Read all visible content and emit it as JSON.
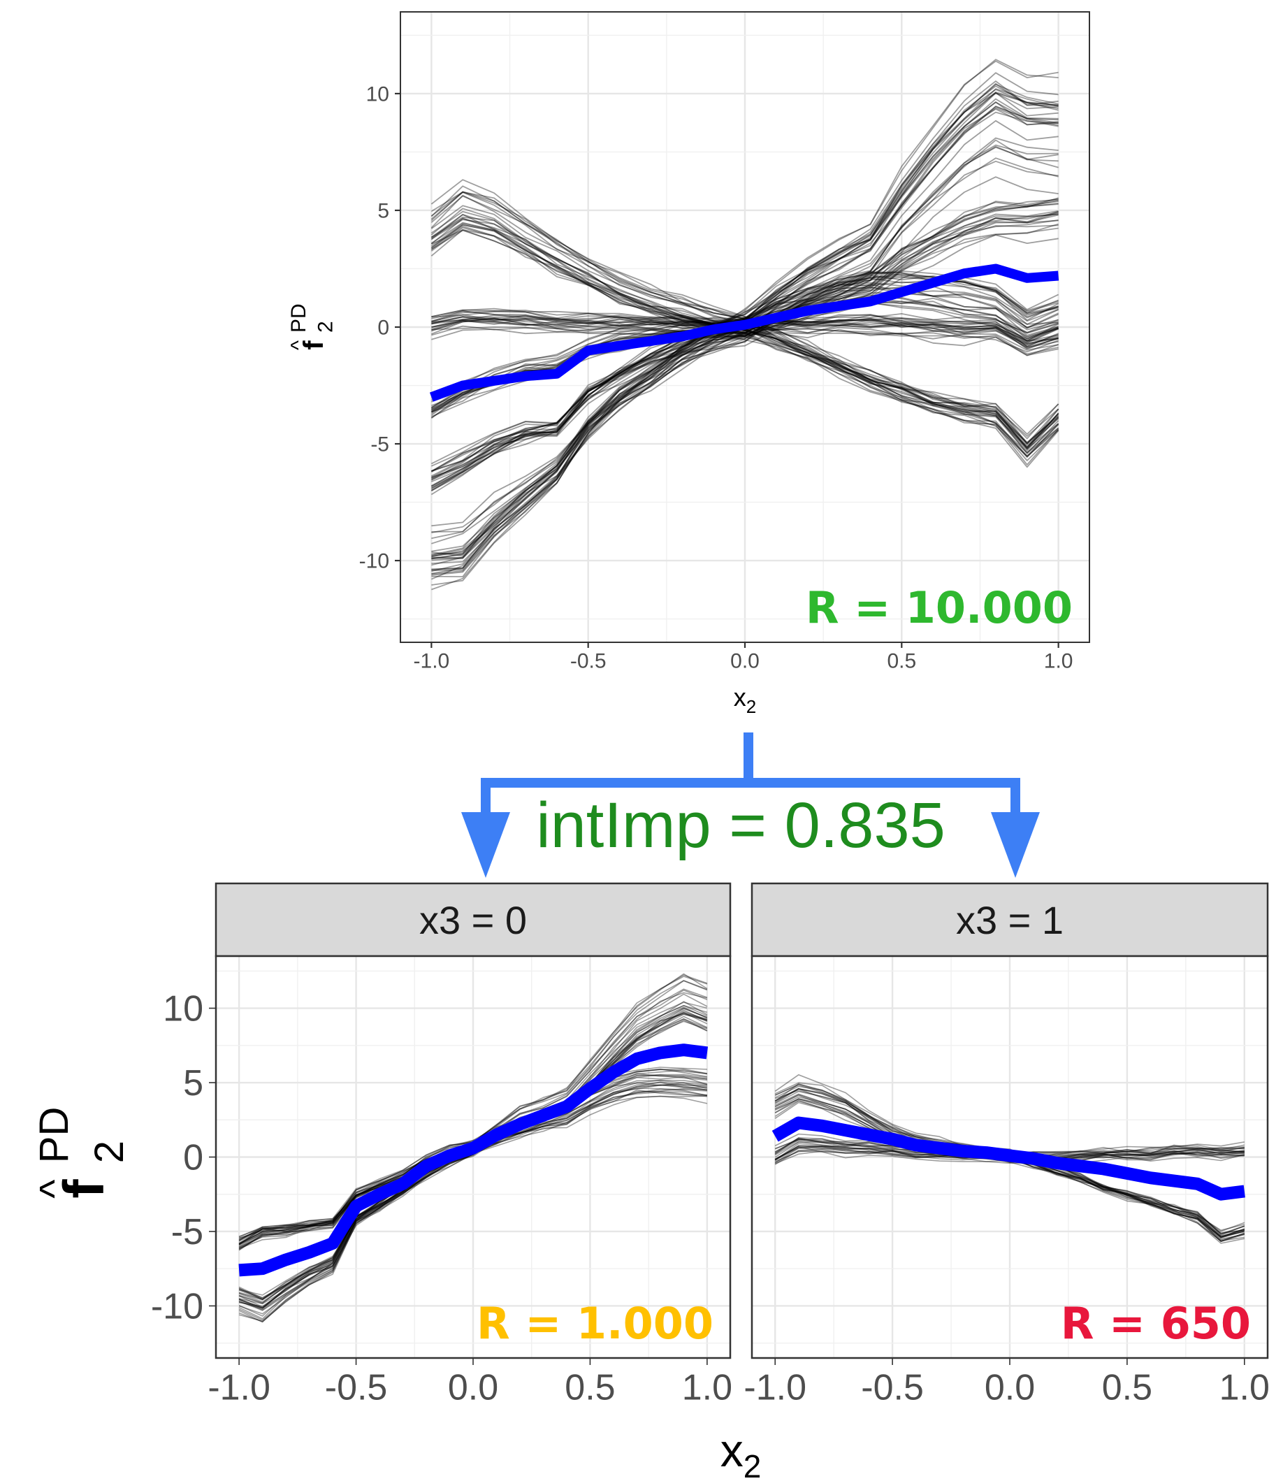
{
  "chart_data": [
    {
      "type": "line",
      "panel": "top",
      "xlabel_base": "x",
      "xlabel_sub": "2",
      "ylabel_base": "f",
      "ylabel_sub": "2",
      "ylabel_sup": "PD",
      "ylabel_hat": "^",
      "xlim": [
        -1.0,
        1.0
      ],
      "ylim": [
        -13.5,
        13.5
      ],
      "xticks": [
        "-1.0",
        "-0.5",
        "0.0",
        "0.5",
        "1.0"
      ],
      "xtick_values": [
        -1.0,
        -0.5,
        0.0,
        0.5,
        1.0
      ],
      "yticks": [
        "-10",
        "-5",
        "0",
        "5",
        "10"
      ],
      "ytick_values": [
        -10,
        -5,
        0,
        5,
        10
      ],
      "grid": true,
      "annotation": "R = 10.000",
      "annotation_color": "#2eb82e",
      "mean_color": "#0000ff",
      "ice_color": "#000000",
      "x": [
        -1.0,
        -0.9,
        -0.8,
        -0.7,
        -0.6,
        -0.5,
        -0.4,
        -0.3,
        -0.2,
        -0.1,
        0.0,
        0.1,
        0.2,
        0.3,
        0.4,
        0.5,
        0.6,
        0.7,
        0.8,
        0.9,
        1.0
      ],
      "series": [
        {
          "values": [
            -3.0,
            -2.5,
            -2.3,
            -2.1,
            -2.0,
            -1.0,
            -0.8,
            -0.6,
            -0.4,
            -0.1,
            0.1,
            0.4,
            0.7,
            0.9,
            1.1,
            1.5,
            1.9,
            2.3,
            2.5,
            2.1,
            2.2
          ]
        }
      ],
      "ice_groups": [
        {
          "values": [
            4.0,
            5.0,
            4.6,
            3.8,
            3.0,
            2.3,
            1.6,
            1.1,
            0.7,
            0.3,
            0.0,
            -0.5,
            -1.1,
            -1.7,
            -2.3,
            -2.8,
            -3.3,
            -3.6,
            -3.8,
            -5.3,
            -4.0
          ],
          "spread": 1.6,
          "count": 26
        },
        {
          "values": [
            0.0,
            0.3,
            0.3,
            0.2,
            0.1,
            0.1,
            0.1,
            0.1,
            0.1,
            0.0,
            0.0,
            0.0,
            0.0,
            0.1,
            0.1,
            0.0,
            -0.1,
            -0.2,
            -0.1,
            -0.8,
            -0.4
          ],
          "spread": 1.1,
          "count": 22
        },
        {
          "values": [
            -6.5,
            -5.8,
            -5.0,
            -4.5,
            -4.3,
            -2.8,
            -2.0,
            -1.3,
            -0.7,
            -0.3,
            0.0,
            0.6,
            1.1,
            1.5,
            1.7,
            1.6,
            1.5,
            1.3,
            1.0,
            0.1,
            0.5
          ],
          "spread": 1.4,
          "count": 24
        },
        {
          "values": [
            -10.0,
            -9.8,
            -8.4,
            -7.3,
            -6.2,
            -4.3,
            -3.1,
            -2.2,
            -1.2,
            -0.5,
            0.0,
            1.0,
            1.9,
            2.6,
            3.3,
            5.2,
            6.8,
            8.2,
            9.2,
            8.6,
            8.5
          ],
          "spread": 2.0,
          "count": 30
        },
        {
          "values": [
            -3.5,
            -2.8,
            -2.2,
            -1.8,
            -1.6,
            -0.9,
            -0.6,
            -0.4,
            -0.2,
            -0.1,
            0.0,
            0.5,
            0.9,
            1.3,
            1.8,
            2.8,
            3.5,
            4.2,
            4.6,
            4.6,
            4.8
          ],
          "spread": 1.0,
          "count": 20
        }
      ]
    },
    {
      "type": "line",
      "panel": "bottom-left",
      "strip": "x3 = 0",
      "xlim": [
        -1.0,
        1.0
      ],
      "ylim": [
        -13.5,
        13.5
      ],
      "xticks": [
        "-1.0",
        "-0.5",
        "0.0",
        "0.5",
        "1.0"
      ],
      "xtick_values": [
        -1.0,
        -0.5,
        0.0,
        0.5,
        1.0
      ],
      "yticks": [
        "-10",
        "-5",
        "0",
        "5",
        "10"
      ],
      "ytick_values": [
        -10,
        -5,
        0,
        5,
        10
      ],
      "grid": true,
      "annotation": "R = 1.000",
      "annotation_color": "#ffc000",
      "mean_color": "#0000ff",
      "ice_color": "#000000",
      "x": [
        -1.0,
        -0.9,
        -0.8,
        -0.7,
        -0.6,
        -0.5,
        -0.4,
        -0.3,
        -0.2,
        -0.1,
        0.0,
        0.1,
        0.2,
        0.3,
        0.4,
        0.5,
        0.6,
        0.7,
        0.8,
        0.9,
        1.0
      ],
      "series": [
        {
          "values": [
            -7.6,
            -7.5,
            -6.9,
            -6.4,
            -5.8,
            -3.3,
            -2.5,
            -1.8,
            -0.6,
            0.1,
            0.6,
            1.5,
            2.2,
            2.8,
            3.4,
            4.6,
            5.7,
            6.6,
            7.0,
            7.2,
            7.0
          ]
        }
      ],
      "ice_groups": [
        {
          "values": [
            -9.6,
            -10.2,
            -9.0,
            -8.0,
            -7.2,
            -4.2,
            -3.2,
            -2.2,
            -1.0,
            -0.1,
            0.6,
            1.6,
            2.6,
            3.2,
            3.8,
            5.4,
            7.2,
            8.8,
            9.8,
            10.6,
            10.0
          ],
          "spread": 1.3,
          "count": 28
        },
        {
          "values": [
            -5.8,
            -5.0,
            -4.9,
            -4.6,
            -4.4,
            -2.5,
            -1.9,
            -1.3,
            -0.3,
            0.3,
            0.7,
            1.4,
            1.9,
            2.4,
            2.8,
            3.8,
            4.5,
            5.0,
            5.0,
            5.0,
            4.8
          ],
          "spread": 1.1,
          "count": 26
        }
      ]
    },
    {
      "type": "line",
      "panel": "bottom-right",
      "strip": "x3 = 1",
      "xlim": [
        -1.0,
        1.0
      ],
      "ylim": [
        -13.5,
        13.5
      ],
      "xticks": [
        "-1.0",
        "-0.5",
        "0.0",
        "0.5",
        "1.0"
      ],
      "xtick_values": [
        -1.0,
        -0.5,
        0.0,
        0.5,
        1.0
      ],
      "grid": true,
      "annotation": "R = 650",
      "annotation_color": "#e8173c",
      "mean_color": "#0000ff",
      "ice_color": "#000000",
      "x": [
        -1.0,
        -0.9,
        -0.8,
        -0.7,
        -0.6,
        -0.5,
        -0.4,
        -0.3,
        -0.2,
        -0.1,
        0.0,
        0.1,
        0.2,
        0.3,
        0.4,
        0.5,
        0.6,
        0.7,
        0.8,
        0.9,
        1.0
      ],
      "series": [
        {
          "values": [
            1.4,
            2.3,
            2.1,
            1.8,
            1.5,
            1.2,
            0.8,
            0.6,
            0.4,
            0.3,
            0.1,
            -0.1,
            -0.4,
            -0.6,
            -0.8,
            -1.1,
            -1.4,
            -1.6,
            -1.8,
            -2.5,
            -2.3
          ]
        }
      ],
      "ice_groups": [
        {
          "values": [
            3.6,
            4.4,
            4.0,
            3.4,
            2.5,
            1.6,
            1.1,
            0.8,
            0.5,
            0.3,
            0.1,
            -0.4,
            -0.9,
            -1.4,
            -2.0,
            -2.5,
            -3.0,
            -3.5,
            -4.0,
            -5.3,
            -4.9
          ],
          "spread": 1.0,
          "count": 22
        },
        {
          "values": [
            0.0,
            0.9,
            0.8,
            0.6,
            0.6,
            0.5,
            0.3,
            0.2,
            0.1,
            0.1,
            0.0,
            0.0,
            0.0,
            0.1,
            0.2,
            0.2,
            0.2,
            0.4,
            0.4,
            0.3,
            0.4
          ],
          "spread": 0.9,
          "count": 22
        }
      ]
    }
  ],
  "connector": {
    "label": "intImp = 0.835",
    "label_color": "#1e8c1e",
    "arrow_color": "#3d7ff5"
  }
}
